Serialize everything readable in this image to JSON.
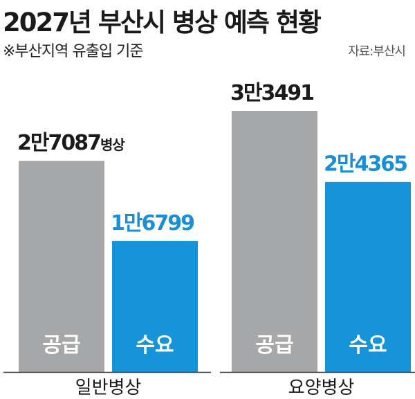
{
  "header": {
    "title": "2027년 부산시 병상 예측 현황",
    "subtitle": "※부산지역 유출입 기준",
    "source": "자료:부산시"
  },
  "colors": {
    "supply": "#a6a7a9",
    "demand": "#1594d9",
    "demand_label": "#1a8fd6",
    "text": "#1a1a1a"
  },
  "chart_data": {
    "type": "bar",
    "title": "2027년 부산시 병상 예측 현황",
    "categories": [
      "일반병상",
      "요양병상"
    ],
    "series": [
      {
        "name": "공급",
        "values": [
          27087,
          33491
        ],
        "value_labels": [
          "2만7087",
          "3만3491"
        ],
        "unit_suffix": [
          "병상",
          ""
        ]
      },
      {
        "name": "수요",
        "values": [
          16799,
          24365
        ],
        "value_labels": [
          "1만6799",
          "2만4365"
        ],
        "unit_suffix": [
          "",
          ""
        ]
      }
    ],
    "ylim": [
      0,
      33491
    ],
    "grid": false,
    "legend": "none"
  }
}
